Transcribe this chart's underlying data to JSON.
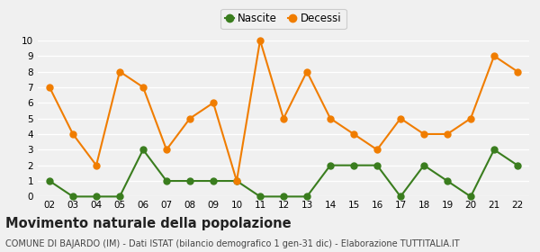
{
  "years": [
    "02",
    "03",
    "04",
    "05",
    "06",
    "07",
    "08",
    "09",
    "10",
    "11",
    "12",
    "13",
    "14",
    "15",
    "16",
    "17",
    "18",
    "19",
    "20",
    "21",
    "22"
  ],
  "nascite": [
    1,
    0,
    0,
    0,
    3,
    1,
    1,
    1,
    1,
    0,
    0,
    0,
    2,
    2,
    2,
    0,
    2,
    1,
    0,
    3,
    2
  ],
  "decessi": [
    7,
    4,
    2,
    8,
    7,
    3,
    5,
    6,
    1,
    10,
    5,
    8,
    5,
    4,
    3,
    5,
    4,
    4,
    5,
    9,
    8
  ],
  "nascite_color": "#3a7d1e",
  "decessi_color": "#f07d00",
  "background_color": "#f0f0f0",
  "grid_color": "#ffffff",
  "ylim": [
    0,
    10
  ],
  "yticks": [
    0,
    1,
    2,
    3,
    4,
    5,
    6,
    7,
    8,
    9,
    10
  ],
  "title": "Movimento naturale della popolazione",
  "subtitle": "COMUNE DI BAJARDO (IM) - Dati ISTAT (bilancio demografico 1 gen-31 dic) - Elaborazione TUTTITALIA.IT",
  "legend_nascite": "Nascite",
  "legend_decessi": "Decessi",
  "marker_size": 5,
  "linewidth": 1.5,
  "title_fontsize": 10.5,
  "subtitle_fontsize": 7.0,
  "tick_fontsize": 7.5
}
